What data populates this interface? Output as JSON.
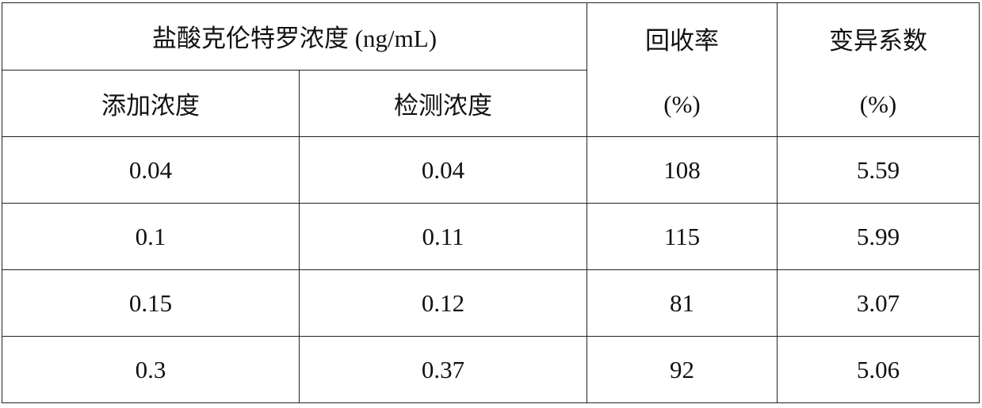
{
  "table": {
    "header": {
      "group": "盐酸克伦特罗浓度 (ng/mL)",
      "sub": [
        "添加浓度",
        "检测浓度"
      ],
      "recovery": [
        "回收率",
        "(%)"
      ],
      "cv": [
        "变异系数",
        "(%)"
      ]
    },
    "rows": [
      [
        "0.04",
        "0.04",
        "108",
        "5.59"
      ],
      [
        "0.1",
        "0.11",
        "115",
        "5.99"
      ],
      [
        "0.15",
        "0.12",
        "81",
        "3.07"
      ],
      [
        "0.3",
        "0.37",
        "92",
        "5.06"
      ]
    ]
  }
}
